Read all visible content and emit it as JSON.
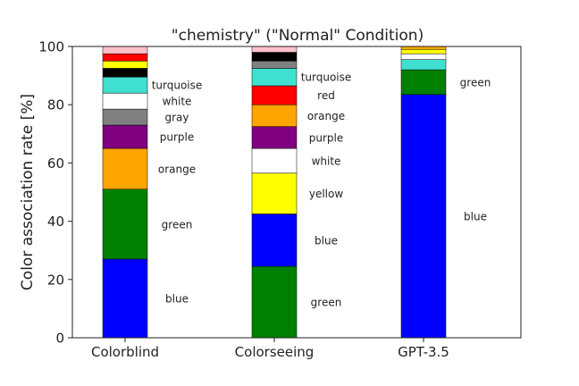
{
  "chart_data": {
    "type": "bar",
    "stacked": true,
    "title": "\"chemistry\" (\"Normal\" Condition)",
    "xlabel": "",
    "ylabel": "Color association rate [%]",
    "ylim": [
      0,
      100
    ],
    "yticks": [
      "0",
      "20",
      "40",
      "60",
      "80",
      "100"
    ],
    "grid": false,
    "categories": [
      "Colorblind",
      "Colorseeing",
      "GPT-3.5"
    ],
    "bars": [
      {
        "category": "Colorblind",
        "segments": [
          {
            "color_name": "blue",
            "color": "#0000ff",
            "value": 27,
            "label": "blue"
          },
          {
            "color_name": "green",
            "color": "#008000",
            "value": 24,
            "label": "green"
          },
          {
            "color_name": "orange",
            "color": "#ffa500",
            "value": 14,
            "label": "orange"
          },
          {
            "color_name": "purple",
            "color": "#800080",
            "value": 8,
            "label": "purple"
          },
          {
            "color_name": "gray",
            "color": "#808080",
            "value": 5.5,
            "label": "gray"
          },
          {
            "color_name": "white",
            "color": "#ffffff",
            "value": 5.5,
            "label": "white"
          },
          {
            "color_name": "turquoise",
            "color": "#40e0d0",
            "value": 5.5,
            "label": "turquoise"
          },
          {
            "color_name": "black",
            "color": "#000000",
            "value": 3,
            "label": ""
          },
          {
            "color_name": "yellow",
            "color": "#ffff00",
            "value": 2.5,
            "label": ""
          },
          {
            "color_name": "red",
            "color": "#ff0000",
            "value": 2.5,
            "label": ""
          },
          {
            "color_name": "pink",
            "color": "#ffc0cb",
            "value": 2.5,
            "label": ""
          }
        ]
      },
      {
        "category": "Colorseeing",
        "segments": [
          {
            "color_name": "green",
            "color": "#008000",
            "value": 24.5,
            "label": "green"
          },
          {
            "color_name": "blue",
            "color": "#0000ff",
            "value": 18,
            "label": "blue"
          },
          {
            "color_name": "yellow",
            "color": "#ffff00",
            "value": 14,
            "label": "yellow"
          },
          {
            "color_name": "white",
            "color": "#ffffff",
            "value": 8.5,
            "label": "white"
          },
          {
            "color_name": "purple",
            "color": "#800080",
            "value": 7.5,
            "label": "purple"
          },
          {
            "color_name": "orange",
            "color": "#ffa500",
            "value": 7.5,
            "label": "orange"
          },
          {
            "color_name": "red",
            "color": "#ff0000",
            "value": 6.5,
            "label": "red"
          },
          {
            "color_name": "turquoise",
            "color": "#40e0d0",
            "value": 6,
            "label": "turquoise"
          },
          {
            "color_name": "gray",
            "color": "#808080",
            "value": 2.5,
            "label": ""
          },
          {
            "color_name": "black",
            "color": "#000000",
            "value": 3,
            "label": ""
          },
          {
            "color_name": "pink",
            "color": "#ffc0cb",
            "value": 2,
            "label": ""
          }
        ]
      },
      {
        "category": "GPT-3.5",
        "segments": [
          {
            "color_name": "blue",
            "color": "#0000ff",
            "value": 83.5,
            "label": "blue"
          },
          {
            "color_name": "green",
            "color": "#008000",
            "value": 8.5,
            "label": "green"
          },
          {
            "color_name": "turquoise",
            "color": "#40e0d0",
            "value": 3.5,
            "label": ""
          },
          {
            "color_name": "white",
            "color": "#ffffff",
            "value": 2,
            "label": ""
          },
          {
            "color_name": "yellow",
            "color": "#ffff00",
            "value": 1.5,
            "label": ""
          },
          {
            "color_name": "orange",
            "color": "#ffa500",
            "value": 1,
            "label": ""
          }
        ]
      }
    ]
  }
}
